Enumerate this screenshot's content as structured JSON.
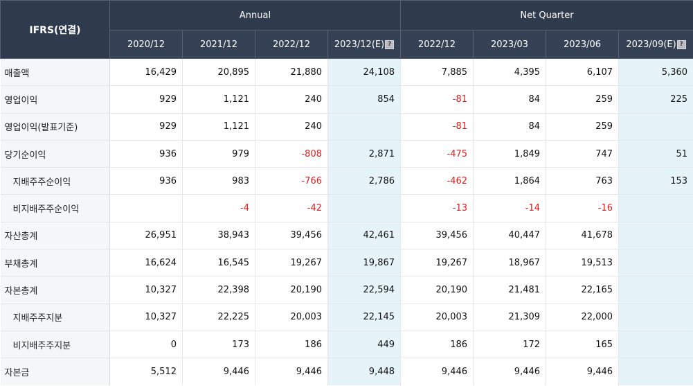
{
  "header": {
    "ifrs": "IFRS(연결)",
    "annual": "Annual",
    "quarter": "Net Quarter",
    "periods": [
      "2020/12",
      "2021/12",
      "2022/12",
      "2023/12(E)",
      "2022/12",
      "2023/03",
      "2023/06",
      "2023/09(E)"
    ],
    "est_icon": "?"
  },
  "rows": [
    {
      "label": "매출액",
      "indent": false,
      "values": [
        "16,429",
        "20,895",
        "21,880",
        "24,108",
        "7,885",
        "4,395",
        "6,107",
        "5,360"
      ]
    },
    {
      "label": "영업이익",
      "indent": false,
      "values": [
        "929",
        "1,121",
        "240",
        "854",
        "-81",
        "84",
        "259",
        "225"
      ]
    },
    {
      "label": "영업이익(발표기준)",
      "indent": false,
      "values": [
        "929",
        "1,121",
        "240",
        "",
        "-81",
        "84",
        "259",
        ""
      ]
    },
    {
      "label": "당기순이익",
      "indent": false,
      "values": [
        "936",
        "979",
        "-808",
        "2,871",
        "-475",
        "1,849",
        "747",
        "51"
      ]
    },
    {
      "label": "지배주주순이익",
      "indent": true,
      "values": [
        "936",
        "983",
        "-766",
        "2,786",
        "-462",
        "1,864",
        "763",
        "153"
      ]
    },
    {
      "label": "비지배주주순이익",
      "indent": true,
      "values": [
        "",
        "-4",
        "-42",
        "",
        "-13",
        "-14",
        "-16",
        ""
      ]
    },
    {
      "label": "자산총계",
      "indent": false,
      "values": [
        "26,951",
        "38,943",
        "39,456",
        "42,461",
        "39,456",
        "40,447",
        "41,678",
        ""
      ]
    },
    {
      "label": "부채총계",
      "indent": false,
      "values": [
        "16,624",
        "16,545",
        "19,267",
        "19,867",
        "19,267",
        "18,967",
        "19,513",
        ""
      ]
    },
    {
      "label": "자본총계",
      "indent": false,
      "values": [
        "10,327",
        "22,398",
        "20,190",
        "22,594",
        "20,190",
        "21,481",
        "22,165",
        ""
      ]
    },
    {
      "label": "지배주주지분",
      "indent": true,
      "values": [
        "10,327",
        "22,225",
        "20,003",
        "22,145",
        "20,003",
        "21,309",
        "22,000",
        ""
      ]
    },
    {
      "label": "비지배주주지분",
      "indent": true,
      "values": [
        "0",
        "173",
        "186",
        "449",
        "186",
        "172",
        "165",
        ""
      ]
    },
    {
      "label": "자본금",
      "indent": false,
      "values": [
        "5,512",
        "9,446",
        "9,446",
        "9,448",
        "9,446",
        "9,446",
        "9,446",
        ""
      ]
    }
  ]
}
